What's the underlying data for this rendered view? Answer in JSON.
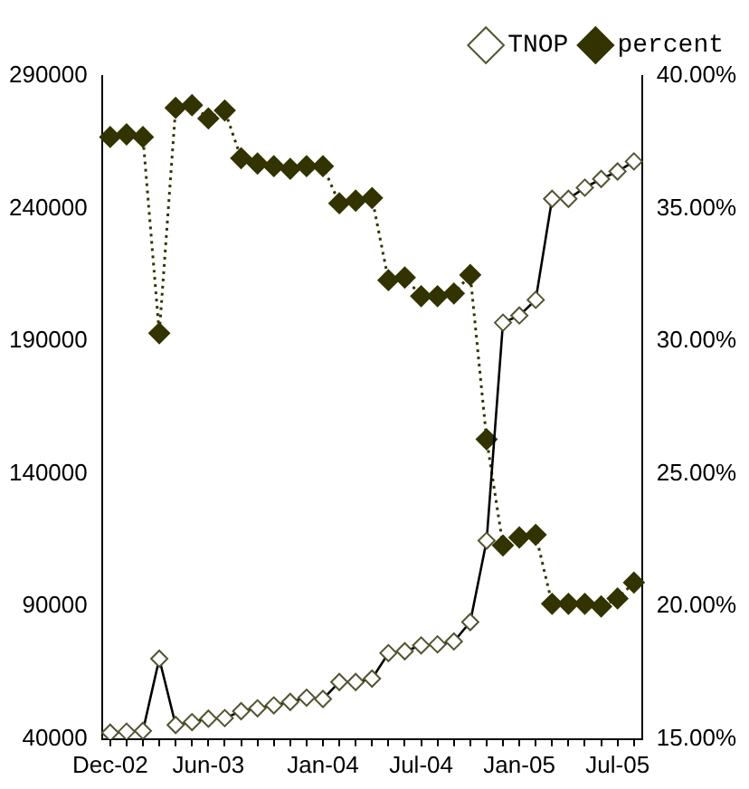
{
  "chart_data": {
    "type": "line",
    "categories": [
      "Dec-02",
      null,
      null,
      null,
      null,
      null,
      "Jun-03",
      null,
      null,
      null,
      null,
      null,
      null,
      "Jan-04",
      null,
      null,
      null,
      null,
      null,
      "Jul-04",
      null,
      null,
      null,
      null,
      null,
      "Jan-05",
      null,
      null,
      null,
      null,
      null,
      "Jul-05",
      null
    ],
    "series": [
      {
        "name": "TNOP",
        "color": "#000000",
        "marker": "diamond",
        "line_style": "solid",
        "values": [
          42400,
          42800,
          43100,
          70300,
          45300,
          46400,
          47700,
          47900,
          50500,
          51600,
          52700,
          54000,
          55600,
          55100,
          61500,
          61500,
          62800,
          72400,
          73100,
          75300,
          75700,
          76800,
          84100,
          114800,
          197000,
          199700,
          205600,
          243700,
          243700,
          247900,
          251200,
          254000,
          257800
        ]
      },
      {
        "name": "percent",
        "color": "#333300",
        "marker": "diamond",
        "line_style": "dotted",
        "axis": "y2",
        "values": [
          37.7,
          37.8,
          37.7,
          30.3,
          38.8,
          38.9,
          38.4,
          38.7,
          36.9,
          36.7,
          36.6,
          36.5,
          36.6,
          36.6,
          35.2,
          35.3,
          35.4,
          32.3,
          32.4,
          31.7,
          31.7,
          31.8,
          32.5,
          26.3,
          22.3,
          22.6,
          22.7,
          20.1,
          20.1,
          20.1,
          20.0,
          20.3,
          20.9
        ]
      }
    ],
    "ylim": [
      40000,
      290000
    ],
    "yticks": [
      40000,
      90000,
      140000,
      190000,
      240000,
      290000
    ],
    "y2lim": [
      15,
      40
    ],
    "y2ticks": [
      {
        "value": 15,
        "label": "15.00%"
      },
      {
        "value": 20,
        "label": "20.00%"
      },
      {
        "value": 25,
        "label": "25.00%"
      },
      {
        "value": 30,
        "label": "30.00%"
      },
      {
        "value": 35,
        "label": "35.00%"
      },
      {
        "value": 40,
        "label": "40.00%"
      }
    ],
    "grid": false,
    "legend": "top right"
  }
}
